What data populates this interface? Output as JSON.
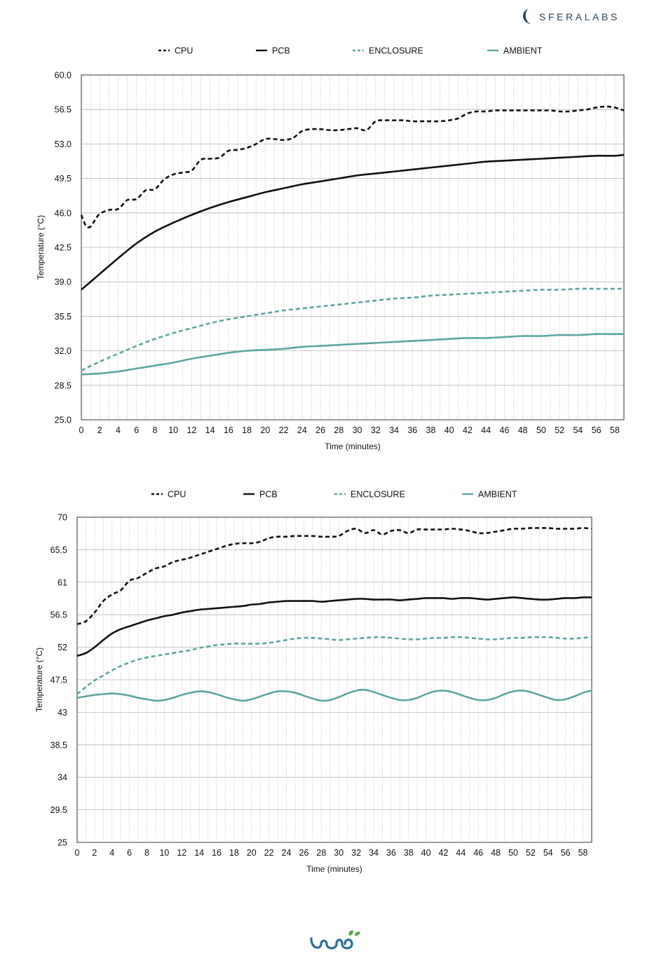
{
  "brand": {
    "name": "SFERALABS",
    "color": "#2c4657"
  },
  "footer": {
    "logo_text": "iono",
    "logo_color": "#2a6f97",
    "leaf_color": "#5aa84a"
  },
  "colors": {
    "cpu": "#111111",
    "pcb": "#111111",
    "enclosure": "#5ba69f",
    "ambient": "#5ba69f",
    "grid": "#b5b5b5"
  },
  "chart_data": [
    {
      "type": "line",
      "xlabel": "Time (minutes)",
      "ylabel": "Temperature (°C)",
      "xlim": [
        0,
        59
      ],
      "ylim": [
        25,
        60
      ],
      "xticks": [
        "0",
        "2",
        "4",
        "6",
        "8",
        "10",
        "12",
        "14",
        "16",
        "18",
        "20",
        "22",
        "24",
        "26",
        "28",
        "30",
        "32",
        "34",
        "36",
        "38",
        "40",
        "42",
        "44",
        "46",
        "48",
        "50",
        "52",
        "54",
        "56",
        "58"
      ],
      "yticks": [
        "25.0",
        "28.5",
        "32.0",
        "35.5",
        "39.0",
        "42.5",
        "46.0",
        "49.5",
        "53.0",
        "56.5",
        "60.0"
      ],
      "grid": "dotted vertical every minute, solid horizontal",
      "legend_position": "top",
      "series": [
        {
          "name": "CPU",
          "style": "dashed",
          "color": "#111111",
          "x": [
            0,
            0.5,
            1,
            1.5,
            2,
            3,
            4,
            5,
            6,
            7,
            8,
            9,
            10,
            11,
            12,
            13,
            14,
            15,
            16,
            17,
            18,
            19,
            20,
            21,
            22,
            23,
            24,
            25,
            26,
            27,
            28,
            29,
            30,
            31,
            32,
            33,
            34,
            35,
            36,
            37,
            38,
            39,
            40,
            41,
            42,
            43,
            44,
            45,
            46,
            47,
            48,
            49,
            50,
            51,
            52,
            53,
            54,
            55,
            56,
            57,
            58,
            59
          ],
          "y": [
            45.8,
            44.7,
            44.6,
            45.3,
            45.9,
            46.3,
            46.4,
            47.3,
            47.4,
            48.3,
            48.4,
            49.4,
            49.9,
            50.1,
            50.3,
            51.4,
            51.5,
            51.6,
            52.3,
            52.4,
            52.6,
            53.0,
            53.5,
            53.5,
            53.4,
            53.6,
            54.3,
            54.5,
            54.5,
            54.4,
            54.4,
            54.5,
            54.6,
            54.4,
            55.3,
            55.4,
            55.4,
            55.4,
            55.3,
            55.3,
            55.3,
            55.3,
            55.4,
            55.6,
            56.1,
            56.3,
            56.3,
            56.4,
            56.4,
            56.4,
            56.4,
            56.4,
            56.4,
            56.4,
            56.3,
            56.3,
            56.4,
            56.5,
            56.7,
            56.8,
            56.7,
            56.4
          ]
        },
        {
          "name": "PCB",
          "style": "solid",
          "color": "#111111",
          "x": [
            0,
            2,
            4,
            6,
            8,
            10,
            12,
            14,
            16,
            18,
            20,
            22,
            24,
            26,
            28,
            30,
            32,
            34,
            36,
            38,
            40,
            42,
            44,
            46,
            48,
            50,
            52,
            54,
            56,
            58,
            59
          ],
          "y": [
            38.2,
            39.8,
            41.4,
            42.9,
            44.1,
            45.0,
            45.8,
            46.5,
            47.1,
            47.6,
            48.1,
            48.5,
            48.9,
            49.2,
            49.5,
            49.8,
            50.0,
            50.2,
            50.4,
            50.6,
            50.8,
            51.0,
            51.2,
            51.3,
            51.4,
            51.5,
            51.6,
            51.7,
            51.8,
            51.8,
            51.9
          ]
        },
        {
          "name": "ENCLOSURE",
          "style": "dashed",
          "color": "#5ba69f",
          "x": [
            0,
            2,
            4,
            6,
            8,
            10,
            12,
            14,
            16,
            18,
            20,
            22,
            24,
            26,
            28,
            30,
            32,
            34,
            36,
            38,
            40,
            42,
            44,
            46,
            48,
            50,
            52,
            54,
            56,
            58,
            59
          ],
          "y": [
            30.0,
            30.9,
            31.7,
            32.5,
            33.2,
            33.8,
            34.3,
            34.8,
            35.2,
            35.5,
            35.8,
            36.1,
            36.3,
            36.5,
            36.7,
            36.9,
            37.1,
            37.3,
            37.4,
            37.6,
            37.7,
            37.8,
            37.9,
            38.0,
            38.1,
            38.2,
            38.2,
            38.3,
            38.3,
            38.3,
            38.3
          ]
        },
        {
          "name": "AMBIENT",
          "style": "solid",
          "color": "#5ba69f",
          "x": [
            0,
            2,
            4,
            6,
            8,
            10,
            12,
            14,
            16,
            18,
            20,
            22,
            24,
            26,
            28,
            30,
            32,
            34,
            36,
            38,
            40,
            42,
            44,
            46,
            48,
            50,
            52,
            54,
            56,
            58,
            59
          ],
          "y": [
            29.6,
            29.7,
            29.9,
            30.2,
            30.5,
            30.8,
            31.2,
            31.5,
            31.8,
            32.0,
            32.1,
            32.2,
            32.4,
            32.5,
            32.6,
            32.7,
            32.8,
            32.9,
            33.0,
            33.1,
            33.2,
            33.3,
            33.3,
            33.4,
            33.5,
            33.5,
            33.6,
            33.6,
            33.7,
            33.7,
            33.7
          ]
        }
      ]
    },
    {
      "type": "line",
      "xlabel": "Time (minutes)",
      "ylabel": "Temperature (°C)",
      "xlim": [
        0,
        59
      ],
      "ylim": [
        25,
        70
      ],
      "xticks": [
        "0",
        "2",
        "4",
        "6",
        "8",
        "10",
        "12",
        "14",
        "16",
        "18",
        "20",
        "22",
        "24",
        "26",
        "28",
        "30",
        "32",
        "34",
        "36",
        "38",
        "40",
        "42",
        "44",
        "46",
        "48",
        "50",
        "52",
        "54",
        "56",
        "58"
      ],
      "yticks": [
        "25",
        "29.5",
        "34",
        "38.5",
        "43",
        "47.5",
        "52",
        "56.5",
        "61",
        "65.5",
        "70"
      ],
      "grid": "dotted vertical every minute, solid horizontal",
      "legend_position": "top",
      "series": [
        {
          "name": "CPU",
          "style": "dashed",
          "color": "#111111",
          "x": [
            0,
            1,
            2,
            3,
            4,
            5,
            6,
            7,
            8,
            9,
            10,
            11,
            12,
            13,
            14,
            15,
            16,
            17,
            18,
            19,
            20,
            21,
            22,
            23,
            24,
            25,
            26,
            27,
            28,
            29,
            30,
            31,
            32,
            33,
            34,
            35,
            36,
            37,
            38,
            39,
            40,
            41,
            42,
            43,
            44,
            45,
            46,
            47,
            48,
            49,
            50,
            51,
            52,
            53,
            54,
            55,
            56,
            57,
            58,
            59
          ],
          "y": [
            55.2,
            55.6,
            56.8,
            58.4,
            59.3,
            59.9,
            61.2,
            61.6,
            62.3,
            62.9,
            63.2,
            63.8,
            64.1,
            64.4,
            64.8,
            65.2,
            65.6,
            66.0,
            66.3,
            66.4,
            66.4,
            66.6,
            67.1,
            67.3,
            67.3,
            67.4,
            67.4,
            67.4,
            67.3,
            67.3,
            67.4,
            68.1,
            68.4,
            67.8,
            68.2,
            67.6,
            68.1,
            68.2,
            67.8,
            68.3,
            68.3,
            68.3,
            68.3,
            68.4,
            68.3,
            68.1,
            67.8,
            67.8,
            68.0,
            68.2,
            68.4,
            68.4,
            68.5,
            68.5,
            68.5,
            68.4,
            68.4,
            68.4,
            68.5,
            68.4
          ]
        },
        {
          "name": "PCB",
          "style": "solid",
          "color": "#111111",
          "x": [
            0,
            1,
            2,
            3,
            4,
            5,
            6,
            7,
            8,
            9,
            10,
            11,
            12,
            13,
            14,
            15,
            16,
            17,
            18,
            19,
            20,
            21,
            22,
            23,
            24,
            25,
            26,
            27,
            28,
            29,
            30,
            31,
            32,
            33,
            34,
            35,
            36,
            37,
            38,
            39,
            40,
            41,
            42,
            43,
            44,
            45,
            46,
            47,
            48,
            49,
            50,
            51,
            52,
            53,
            54,
            55,
            56,
            57,
            58,
            59
          ],
          "y": [
            50.8,
            51.2,
            52.0,
            53.0,
            53.9,
            54.5,
            54.9,
            55.3,
            55.7,
            56.0,
            56.3,
            56.5,
            56.8,
            57.0,
            57.2,
            57.3,
            57.4,
            57.5,
            57.6,
            57.7,
            57.9,
            58.0,
            58.2,
            58.3,
            58.4,
            58.4,
            58.4,
            58.4,
            58.3,
            58.4,
            58.5,
            58.6,
            58.7,
            58.7,
            58.6,
            58.6,
            58.6,
            58.5,
            58.6,
            58.7,
            58.8,
            58.8,
            58.8,
            58.7,
            58.8,
            58.8,
            58.7,
            58.6,
            58.7,
            58.8,
            58.9,
            58.8,
            58.7,
            58.6,
            58.6,
            58.7,
            58.8,
            58.8,
            58.9,
            58.9
          ]
        },
        {
          "name": "ENCLOSURE",
          "style": "dashed",
          "color": "#5ba69f",
          "x": [
            0,
            1,
            2,
            3,
            4,
            5,
            6,
            7,
            8,
            9,
            10,
            11,
            12,
            13,
            14,
            15,
            16,
            17,
            18,
            19,
            20,
            21,
            22,
            23,
            24,
            25,
            26,
            27,
            28,
            29,
            30,
            31,
            32,
            33,
            34,
            35,
            36,
            37,
            38,
            39,
            40,
            41,
            42,
            43,
            44,
            45,
            46,
            47,
            48,
            49,
            50,
            51,
            52,
            53,
            54,
            55,
            56,
            57,
            58,
            59
          ],
          "y": [
            45.5,
            46.5,
            47.4,
            48.1,
            48.8,
            49.4,
            49.9,
            50.3,
            50.6,
            50.8,
            51.0,
            51.2,
            51.4,
            51.6,
            51.9,
            52.1,
            52.3,
            52.4,
            52.5,
            52.5,
            52.5,
            52.5,
            52.6,
            52.8,
            53.0,
            53.2,
            53.3,
            53.3,
            53.2,
            53.1,
            53.0,
            53.1,
            53.2,
            53.3,
            53.4,
            53.4,
            53.3,
            53.2,
            53.1,
            53.1,
            53.2,
            53.3,
            53.3,
            53.4,
            53.4,
            53.3,
            53.2,
            53.1,
            53.1,
            53.2,
            53.3,
            53.3,
            53.4,
            53.4,
            53.4,
            53.3,
            53.2,
            53.2,
            53.3,
            53.4
          ]
        },
        {
          "name": "AMBIENT",
          "style": "solid",
          "color": "#5ba69f",
          "x": [
            0,
            1,
            2,
            3,
            4,
            5,
            6,
            7,
            8,
            9,
            10,
            11,
            12,
            13,
            14,
            15,
            16,
            17,
            18,
            19,
            20,
            21,
            22,
            23,
            24,
            25,
            26,
            27,
            28,
            29,
            30,
            31,
            32,
            33,
            34,
            35,
            36,
            37,
            38,
            39,
            40,
            41,
            42,
            43,
            44,
            45,
            46,
            47,
            48,
            49,
            50,
            51,
            52,
            53,
            54,
            55,
            56,
            57,
            58,
            59
          ],
          "y": [
            45.0,
            45.2,
            45.4,
            45.5,
            45.6,
            45.5,
            45.3,
            45.0,
            44.8,
            44.6,
            44.7,
            45.0,
            45.4,
            45.7,
            45.9,
            45.8,
            45.5,
            45.1,
            44.8,
            44.6,
            44.8,
            45.2,
            45.6,
            45.9,
            45.9,
            45.7,
            45.3,
            44.9,
            44.6,
            44.7,
            45.1,
            45.6,
            46.0,
            46.1,
            45.8,
            45.4,
            45.0,
            44.7,
            44.7,
            45.0,
            45.5,
            45.9,
            46.0,
            45.8,
            45.4,
            45.0,
            44.7,
            44.7,
            45.0,
            45.5,
            45.9,
            46.0,
            45.8,
            45.4,
            45.0,
            44.7,
            44.8,
            45.2,
            45.7,
            46.0
          ]
        }
      ]
    }
  ]
}
